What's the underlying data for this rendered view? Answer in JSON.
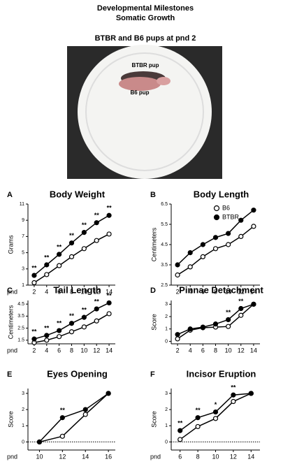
{
  "header": {
    "title": "Developmental Milestones",
    "subtitle": "Somatic Growth",
    "photo_caption": "BTBR and B6 pups at pnd 2"
  },
  "photo": {
    "labels": [
      "BTBR pup",
      "B6 pup"
    ]
  },
  "chart_data": [
    {
      "type": "line",
      "panel": "A",
      "title": "Body Weight",
      "y_label": "Grams",
      "x_label": "pnd",
      "x": [
        2,
        4,
        6,
        8,
        10,
        12,
        14
      ],
      "xlim": [
        1,
        15
      ],
      "ylim": [
        1,
        11
      ],
      "yticks": [
        1,
        3,
        5,
        7,
        9,
        11
      ],
      "series": [
        {
          "color": "#000000",
          "marker_fill": "#ffffff",
          "values": [
            1.3,
            2.3,
            3.4,
            4.5,
            5.5,
            6.5,
            7.3
          ]
        },
        {
          "color": "#000000",
          "marker_fill": "#000000",
          "values": [
            2.2,
            3.5,
            4.8,
            6.2,
            7.5,
            8.7,
            9.6
          ],
          "sig_labels": [
            "**",
            "**",
            "**",
            "**",
            "**",
            "**",
            "**"
          ]
        }
      ]
    },
    {
      "type": "line",
      "panel": "B",
      "title": "Body Length",
      "y_label": "Centimeters",
      "x": [
        2,
        4,
        6,
        8,
        10,
        12,
        14
      ],
      "xlim": [
        1,
        15
      ],
      "ylim": [
        2.5,
        6.5
      ],
      "yticks": [
        2.5,
        3.5,
        4.5,
        5.5,
        6.5
      ],
      "legend": "upper right",
      "series": [
        {
          "name": "B6",
          "color": "#000000",
          "marker_fill": "#ffffff",
          "values": [
            3.0,
            3.4,
            3.9,
            4.3,
            4.5,
            4.9,
            5.4
          ]
        },
        {
          "name": "BTBR",
          "color": "#000000",
          "marker_fill": "#000000",
          "values": [
            3.5,
            4.1,
            4.5,
            4.85,
            5.05,
            5.7,
            6.2
          ]
        }
      ]
    },
    {
      "type": "line",
      "panel": "C",
      "title": "Tail Length",
      "y_label": "Centimeters",
      "x_label": "pnd",
      "x": [
        2,
        4,
        6,
        8,
        10,
        12,
        14
      ],
      "xlim": [
        1,
        15
      ],
      "ylim": [
        1.2,
        4.8
      ],
      "yticks": [
        1.5,
        2.5,
        3.5,
        4.5
      ],
      "series": [
        {
          "color": "#000000",
          "marker_fill": "#ffffff",
          "values": [
            1.3,
            1.5,
            1.8,
            2.2,
            2.6,
            3.1,
            3.7
          ]
        },
        {
          "color": "#000000",
          "marker_fill": "#000000",
          "values": [
            1.6,
            1.9,
            2.3,
            2.9,
            3.4,
            4.1,
            4.6
          ],
          "sig_labels": [
            "**",
            "**",
            "**",
            "**",
            "**",
            "**",
            "**"
          ]
        }
      ]
    },
    {
      "type": "line",
      "panel": "D",
      "title": "Pinnae Detachment",
      "y_label": "Score",
      "x": [
        2,
        4,
        6,
        8,
        10,
        12,
        14
      ],
      "xlim": [
        1,
        15
      ],
      "ylim": [
        -0.2,
        3.3
      ],
      "yticks": [
        0,
        1,
        2,
        3
      ],
      "series": [
        {
          "color": "#000000",
          "marker_fill": "#ffffff",
          "values": [
            0.2,
            0.9,
            1.1,
            1.15,
            1.2,
            2.1,
            3.0
          ]
        },
        {
          "color": "#000000",
          "marker_fill": "#000000",
          "values": [
            0.55,
            1.0,
            1.15,
            1.4,
            1.75,
            2.65,
            3.0
          ],
          "sig_labels": [
            null,
            null,
            null,
            null,
            "**",
            "**",
            null
          ]
        }
      ]
    },
    {
      "type": "line",
      "panel": "E",
      "title": "Eyes Opening",
      "y_label": "Score",
      "x_label": "pnd",
      "x": [
        10,
        12,
        14,
        16
      ],
      "xlim": [
        9,
        16.6
      ],
      "ylim": [
        -0.5,
        3.3
      ],
      "yticks": [
        0,
        1,
        2,
        3
      ],
      "zero_line": true,
      "series": [
        {
          "color": "#000000",
          "marker_fill": "#ffffff",
          "values": [
            0,
            0.35,
            1.7,
            3.0
          ]
        },
        {
          "color": "#000000",
          "marker_fill": "#000000",
          "values": [
            0,
            1.5,
            2.0,
            3.0
          ],
          "sig_labels": [
            null,
            "**",
            null,
            null
          ]
        }
      ]
    },
    {
      "type": "line",
      "panel": "F",
      "title": "Incisor Eruption",
      "y_label": "Score",
      "x_label": "pnd",
      "x": [
        6,
        8,
        10,
        12,
        14
      ],
      "xlim": [
        5,
        15
      ],
      "ylim": [
        -0.5,
        3.3
      ],
      "yticks": [
        0,
        1,
        2,
        3
      ],
      "zero_line": true,
      "series": [
        {
          "color": "#000000",
          "marker_fill": "#ffffff",
          "values": [
            0.15,
            0.95,
            1.45,
            2.5,
            3.0
          ]
        },
        {
          "color": "#000000",
          "marker_fill": "#000000",
          "values": [
            0.7,
            1.5,
            1.85,
            2.9,
            3.0
          ],
          "sig_labels": [
            "**",
            "**",
            "*",
            "**",
            null
          ]
        }
      ]
    }
  ]
}
